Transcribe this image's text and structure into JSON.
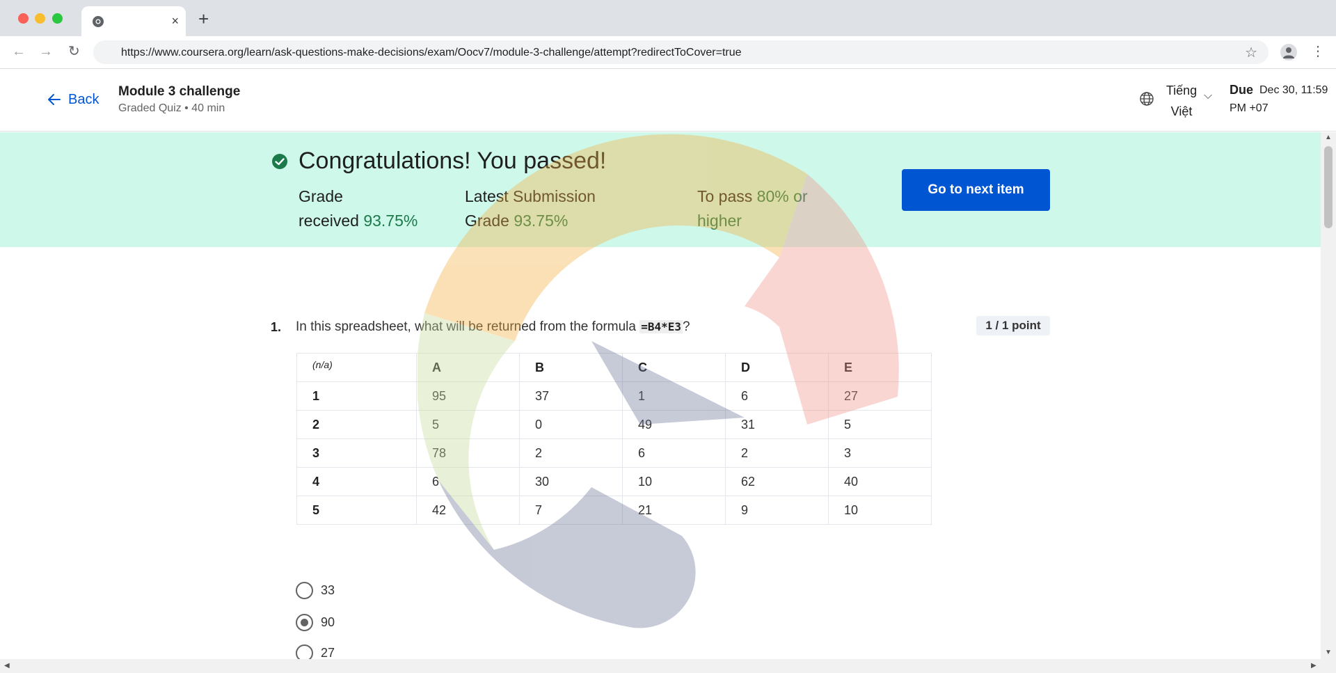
{
  "browser": {
    "url": "https://www.coursera.org/learn/ask-questions-make-decisions/exam/Oocv7/module-3-challenge/attempt?redirectToCover=true",
    "tab_close": "×",
    "new_tab": "+"
  },
  "header": {
    "back_label": "Back",
    "title": "Module 3 challenge",
    "subtitle": "Graded Quiz • 40 min",
    "language_line1": "Tiếng",
    "language_line2": "Việt",
    "due_label": "Due",
    "due_value_line1": "Dec 30, 11:59",
    "due_value_line2": "PM +07"
  },
  "banner": {
    "title": "Congratulations! You passed!",
    "grade_label_1": "Grade",
    "grade_label_2": "received",
    "grade_value": "93.75%",
    "latest_label_1": "Latest Submission",
    "latest_label_2": "Grade",
    "latest_value": "93.75%",
    "pass_label": "To pass",
    "pass_value": "80% or",
    "pass_value_2": "higher",
    "next_button": "Go to next item",
    "accent": "#cef8ea"
  },
  "question": {
    "number": "1.",
    "text_before": "In this spreadsheet, what will be returned from the formula ",
    "formula": "=B4*E3",
    "text_after": "?",
    "points": "1 / 1 point",
    "table": {
      "corner": "(n/a)",
      "columns": [
        "A",
        "B",
        "C",
        "D",
        "E"
      ],
      "rows": [
        {
          "label": "1",
          "cells": [
            "95",
            "37",
            "1",
            "6",
            "27"
          ]
        },
        {
          "label": "2",
          "cells": [
            "5",
            "0",
            "49",
            "31",
            "5"
          ]
        },
        {
          "label": "3",
          "cells": [
            "78",
            "2",
            "6",
            "2",
            "3"
          ]
        },
        {
          "label": "4",
          "cells": [
            "6",
            "30",
            "10",
            "62",
            "40"
          ]
        },
        {
          "label": "5",
          "cells": [
            "42",
            "7",
            "21",
            "9",
            "10"
          ]
        }
      ]
    },
    "options": [
      {
        "label": "33",
        "selected": false
      },
      {
        "label": "90",
        "selected": true
      },
      {
        "label": "27",
        "selected": false
      }
    ]
  },
  "colors": {
    "primary": "#0056d2",
    "success": "#1b7a4a"
  }
}
